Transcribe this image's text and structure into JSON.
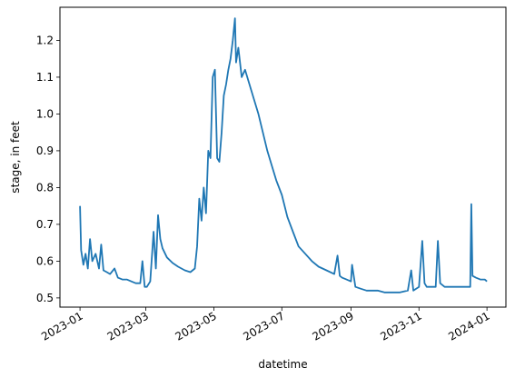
{
  "chart_data": {
    "type": "line",
    "title": "",
    "xlabel": "datetime",
    "ylabel": "stage, in feet",
    "x_scale": "time",
    "xlim": [
      "2022-12-14",
      "2024-01-18"
    ],
    "ylim": [
      0.475,
      1.29
    ],
    "x_ticks": [
      "2023-01",
      "2023-03",
      "2023-05",
      "2023-07",
      "2023-09",
      "2023-11",
      "2024-01"
    ],
    "x_tick_values": [
      "2023-01-01",
      "2023-03-01",
      "2023-05-01",
      "2023-07-01",
      "2023-09-01",
      "2023-11-01",
      "2024-01-01"
    ],
    "y_ticks": [
      "0.5",
      "0.6",
      "0.7",
      "0.8",
      "0.9",
      "1.0",
      "1.1",
      "1.2"
    ],
    "y_tick_values": [
      0.5,
      0.6,
      0.7,
      0.8,
      0.9,
      1.0,
      1.1,
      1.2
    ],
    "grid": false,
    "legend": "none",
    "series": [
      {
        "color": "#1f77b4",
        "x": [
          "2023-01-01",
          "2023-01-02",
          "2023-01-04",
          "2023-01-06",
          "2023-01-08",
          "2023-01-10",
          "2023-01-12",
          "2023-01-15",
          "2023-01-18",
          "2023-01-20",
          "2023-01-22",
          "2023-01-25",
          "2023-01-28",
          "2023-02-01",
          "2023-02-04",
          "2023-02-08",
          "2023-02-12",
          "2023-02-16",
          "2023-02-20",
          "2023-02-24",
          "2023-02-26",
          "2023-02-28",
          "2023-03-02",
          "2023-03-05",
          "2023-03-08",
          "2023-03-10",
          "2023-03-12",
          "2023-03-14",
          "2023-03-16",
          "2023-03-20",
          "2023-03-25",
          "2023-03-30",
          "2023-04-05",
          "2023-04-10",
          "2023-04-14",
          "2023-04-16",
          "2023-04-18",
          "2023-04-20",
          "2023-04-22",
          "2023-04-24",
          "2023-04-26",
          "2023-04-28",
          "2023-04-30",
          "2023-05-02",
          "2023-05-04",
          "2023-05-06",
          "2023-05-08",
          "2023-05-10",
          "2023-05-12",
          "2023-05-14",
          "2023-05-16",
          "2023-05-18",
          "2023-05-20",
          "2023-05-21",
          "2023-05-23",
          "2023-05-26",
          "2023-05-29",
          "2023-06-02",
          "2023-06-06",
          "2023-06-10",
          "2023-06-14",
          "2023-06-18",
          "2023-06-22",
          "2023-06-26",
          "2023-07-01",
          "2023-07-06",
          "2023-07-11",
          "2023-07-16",
          "2023-07-22",
          "2023-07-28",
          "2023-08-03",
          "2023-08-10",
          "2023-08-17",
          "2023-08-20",
          "2023-08-22",
          "2023-08-24",
          "2023-08-28",
          "2023-09-01",
          "2023-09-02",
          "2023-09-05",
          "2023-09-10",
          "2023-09-15",
          "2023-09-20",
          "2023-09-25",
          "2023-10-01",
          "2023-10-08",
          "2023-10-15",
          "2023-10-22",
          "2023-10-25",
          "2023-10-27",
          "2023-11-01",
          "2023-11-04",
          "2023-11-06",
          "2023-11-08",
          "2023-11-12",
          "2023-11-16",
          "2023-11-18",
          "2023-11-20",
          "2023-11-24",
          "2023-11-28",
          "2023-12-04",
          "2023-12-10",
          "2023-12-14",
          "2023-12-17",
          "2023-12-18",
          "2023-12-19",
          "2023-12-22",
          "2023-12-26",
          "2023-12-30",
          "2024-01-01"
        ],
        "y": [
          0.75,
          0.63,
          0.59,
          0.62,
          0.58,
          0.66,
          0.6,
          0.62,
          0.58,
          0.645,
          0.575,
          0.57,
          0.565,
          0.58,
          0.555,
          0.55,
          0.55,
          0.545,
          0.54,
          0.54,
          0.6,
          0.53,
          0.53,
          0.545,
          0.68,
          0.58,
          0.725,
          0.66,
          0.635,
          0.61,
          0.595,
          0.585,
          0.575,
          0.57,
          0.58,
          0.64,
          0.77,
          0.71,
          0.8,
          0.73,
          0.9,
          0.88,
          1.1,
          1.12,
          0.88,
          0.87,
          0.95,
          1.05,
          1.08,
          1.12,
          1.15,
          1.2,
          1.26,
          1.14,
          1.18,
          1.1,
          1.12,
          1.08,
          1.04,
          1.0,
          0.95,
          0.9,
          0.86,
          0.82,
          0.78,
          0.72,
          0.68,
          0.64,
          0.62,
          0.6,
          0.585,
          0.575,
          0.565,
          0.615,
          0.56,
          0.555,
          0.55,
          0.545,
          0.59,
          0.53,
          0.525,
          0.52,
          0.52,
          0.52,
          0.515,
          0.515,
          0.515,
          0.52,
          0.575,
          0.52,
          0.53,
          0.655,
          0.54,
          0.53,
          0.53,
          0.53,
          0.655,
          0.54,
          0.53,
          0.53,
          0.53,
          0.53,
          0.53,
          0.53,
          0.755,
          0.56,
          0.555,
          0.55,
          0.55,
          0.545
        ]
      }
    ]
  }
}
